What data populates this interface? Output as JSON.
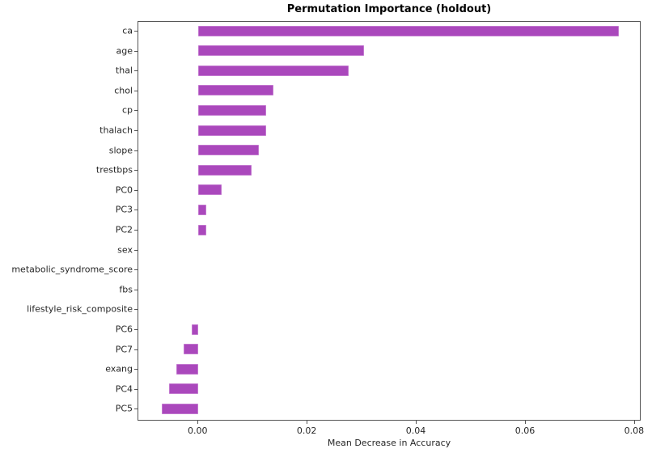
{
  "chart_data": {
    "type": "bar",
    "orientation": "horizontal",
    "title": "Permutation Importance (holdout)",
    "xlabel": "Mean Decrease in Accuracy",
    "ylabel": "",
    "xlim": [
      -0.011,
      0.0812
    ],
    "xticks": [
      "0.00",
      "0.02",
      "0.04",
      "0.06",
      "0.08"
    ],
    "xtick_values": [
      0.0,
      0.02,
      0.04,
      0.06,
      0.08
    ],
    "grid": false,
    "legend": null,
    "bar_color": "#aa48bc",
    "categories": [
      "ca",
      "age",
      "thal",
      "chol",
      "cp",
      "thalach",
      "slope",
      "trestbps",
      "PC0",
      "PC3",
      "PC2",
      "sex",
      "metabolic_syndrome_score",
      "fbs",
      "lifestyle_risk_composite",
      "PC6",
      "PC7",
      "exang",
      "PC4",
      "PC5"
    ],
    "values": [
      0.077,
      0.0304,
      0.0276,
      0.0138,
      0.0124,
      0.0124,
      0.0111,
      0.0097,
      0.0043,
      0.0014,
      0.0014,
      0.0,
      0.0,
      0.0,
      0.0,
      -0.0012,
      -0.0027,
      -0.004,
      -0.0053,
      -0.0067
    ]
  }
}
